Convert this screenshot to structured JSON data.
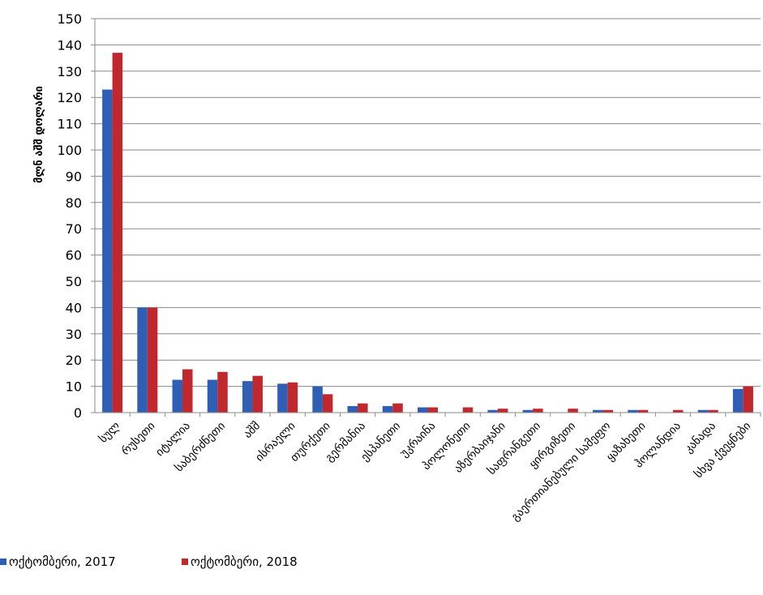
{
  "chart_data": {
    "type": "bar",
    "ylabel": "მლნ აშშ დოლარი",
    "ylim": [
      0,
      150
    ],
    "yticks": [
      0,
      10,
      20,
      30,
      40,
      50,
      60,
      70,
      80,
      90,
      100,
      110,
      120,
      130,
      140,
      150
    ],
    "grid": true,
    "legend_position": "bottom-left",
    "categories": [
      "სულ",
      "რუსეთი",
      "იტალია",
      "საბერძნეთი",
      "აშშ",
      "ისრაელი",
      "თურქეთი",
      "გერმანია",
      "ესპანეთი",
      "უკრაინა",
      "პოლონეთი",
      "აზერბაიჯანი",
      "საფრანგეთი",
      "ყირგიზეთი",
      "გაერთიანებული სამეფო",
      "ყაზახეთი",
      "ჰოლანდია",
      "კანადა",
      "სხვა ქვეყნები"
    ],
    "series": [
      {
        "name": "ოქტომბერი, 2017",
        "color": "#2e5fb5",
        "values": [
          123,
          40,
          12.5,
          12.5,
          12,
          11,
          10,
          2.5,
          2.5,
          2,
          0,
          1,
          1,
          0,
          1,
          1,
          0,
          1,
          9
        ]
      },
      {
        "name": "ოქტომბერი, 2018",
        "color": "#c1282d",
        "values": [
          137,
          40,
          16.5,
          15.5,
          14,
          11.5,
          7,
          3.5,
          3.5,
          2,
          2,
          1.5,
          1.5,
          1.5,
          1,
          1,
          1,
          1,
          10
        ]
      }
    ]
  }
}
